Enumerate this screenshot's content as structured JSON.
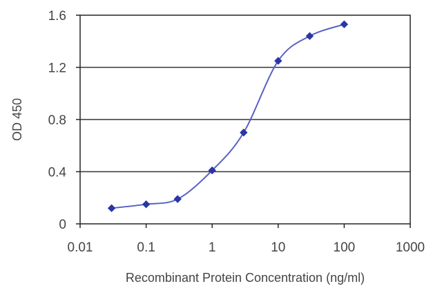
{
  "chart_data": {
    "type": "scatter",
    "title": "",
    "xlabel": "Recombinant Protein Concentration (ng/ml)",
    "ylabel": "OD 450",
    "x_scale": "log",
    "xlim": [
      0.01,
      1000
    ],
    "ylim": [
      0,
      1.6
    ],
    "x_ticks": [
      0.01,
      0.1,
      1,
      10,
      100,
      1000
    ],
    "x_tick_labels": [
      "0.01",
      "0.1",
      "1",
      "10",
      "100",
      "1000"
    ],
    "y_ticks": [
      0,
      0.4,
      0.8,
      1.2,
      1.6
    ],
    "y_tick_labels": [
      "0",
      "0.4",
      "0.8",
      "1.2",
      "1.6"
    ],
    "grid": "horizontal",
    "legend": "none",
    "series": [
      {
        "color": "#2b36a6",
        "marker": "diamond",
        "line": "smooth",
        "x": [
          0.03,
          0.1,
          0.3,
          1,
          3,
          10,
          30,
          100
        ],
        "y": [
          0.12,
          0.15,
          0.19,
          0.41,
          0.7,
          1.25,
          1.44,
          1.53
        ]
      }
    ]
  }
}
